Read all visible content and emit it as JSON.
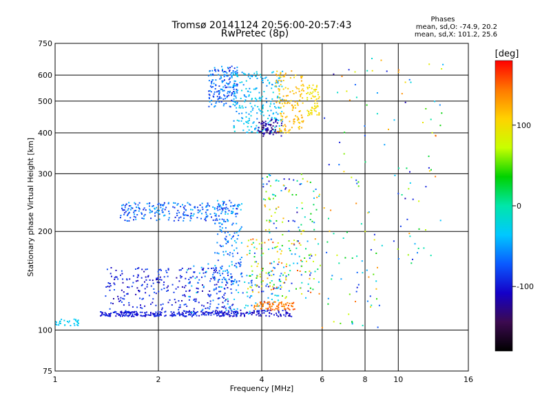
{
  "chart_data": {
    "type": "scatter",
    "title": "Tromsø 20141124 20:56:00-20:57:43",
    "subtitle": "RwPretec (8p)",
    "xlabel": "Frequency [MHz]",
    "ylabel": "Stationary phase Virtual Height [km]",
    "x_scale": "log",
    "y_scale": "log",
    "xlim": [
      1,
      16
    ],
    "ylim": [
      75,
      750
    ],
    "x_ticks": [
      1,
      2,
      4,
      6,
      8,
      10,
      16
    ],
    "y_ticks": [
      75,
      100,
      200,
      300,
      400,
      500,
      600,
      750
    ],
    "x_tick_labels": [
      "1",
      "2",
      "4",
      "6",
      "8",
      "10",
      "16"
    ],
    "y_tick_labels": [
      "75",
      "100",
      "200",
      "300",
      "400",
      "500",
      "600",
      "750"
    ],
    "grid": true,
    "stats": {
      "heading": "Phases",
      "line_o": "mean, sd,O: -74.9, 20.2",
      "line_x": "mean, sd,X: 101.2, 25.6"
    },
    "colorbar": {
      "unit": "[deg]",
      "range": [
        -180,
        180
      ],
      "ticks": [
        100,
        0,
        -100
      ],
      "tick_labels": [
        "100",
        "0",
        "-100"
      ],
      "colormap": [
        "#000000",
        "#3c0a50",
        "#1400c8",
        "#0a5aff",
        "#00c8ff",
        "#00e6aa",
        "#00d200",
        "#c8ff00",
        "#ffd200",
        "#ff7800",
        "#ff0000"
      ]
    },
    "clusters": [
      {
        "f": [
          1.0,
          1.17
        ],
        "h": [
          103,
          108
        ],
        "phase": [
          -40,
          -25
        ],
        "n": 30
      },
      {
        "f": [
          1.35,
          3.4
        ],
        "h": [
          110,
          114
        ],
        "phase": [
          -110,
          -85
        ],
        "n": 260
      },
      {
        "f": [
          1.4,
          3.3
        ],
        "h": [
          114,
          155
        ],
        "phase": [
          -120,
          -75
        ],
        "n": 280
      },
      {
        "f": [
          1.55,
          3.4
        ],
        "h": [
          215,
          245
        ],
        "phase": [
          -100,
          -40
        ],
        "n": 230
      },
      {
        "f": [
          2.4,
          4.5
        ],
        "h": [
          112,
          160
        ],
        "phase": [
          -90,
          -20
        ],
        "n": 120
      },
      {
        "f": [
          3.0,
          4.9
        ],
        "h": [
          110,
          115
        ],
        "phase": [
          -120,
          -95
        ],
        "n": 90
      },
      {
        "f": [
          2.9,
          3.5
        ],
        "h": [
          140,
          250
        ],
        "phase": [
          -90,
          -30
        ],
        "n": 140
      },
      {
        "f": [
          3.8,
          5.0
        ],
        "h": [
          115,
          122
        ],
        "phase": [
          130,
          160
        ],
        "n": 80
      },
      {
        "f": [
          3.6,
          5.9
        ],
        "h": [
          125,
          190
        ],
        "phase": [
          -110,
          160
        ],
        "n": 180
      },
      {
        "f": [
          4.0,
          5.9
        ],
        "h": [
          195,
          300
        ],
        "phase": [
          -120,
          130
        ],
        "n": 90
      },
      {
        "f": [
          2.8,
          3.4
        ],
        "h": [
          480,
          640
        ],
        "phase": [
          -100,
          -40
        ],
        "n": 170
      },
      {
        "f": [
          3.3,
          4.6
        ],
        "h": [
          400,
          620
        ],
        "phase": [
          -60,
          -20
        ],
        "n": 220
      },
      {
        "f": [
          3.9,
          4.6
        ],
        "h": [
          390,
          440
        ],
        "phase": [
          -140,
          -110
        ],
        "n": 70
      },
      {
        "f": [
          4.4,
          5.3
        ],
        "h": [
          400,
          620
        ],
        "phase": [
          100,
          130
        ],
        "n": 140
      },
      {
        "f": [
          5.4,
          5.9
        ],
        "h": [
          450,
          560
        ],
        "phase": [
          85,
          110
        ],
        "n": 60
      },
      {
        "f": [
          6.0,
          13.5
        ],
        "h": [
          160,
          680
        ],
        "phase": [
          -120,
          160
        ],
        "n": 110
      },
      {
        "f": [
          5.8,
          9.0
        ],
        "h": [
          100,
          170
        ],
        "phase": [
          -100,
          150
        ],
        "n": 40
      }
    ]
  }
}
